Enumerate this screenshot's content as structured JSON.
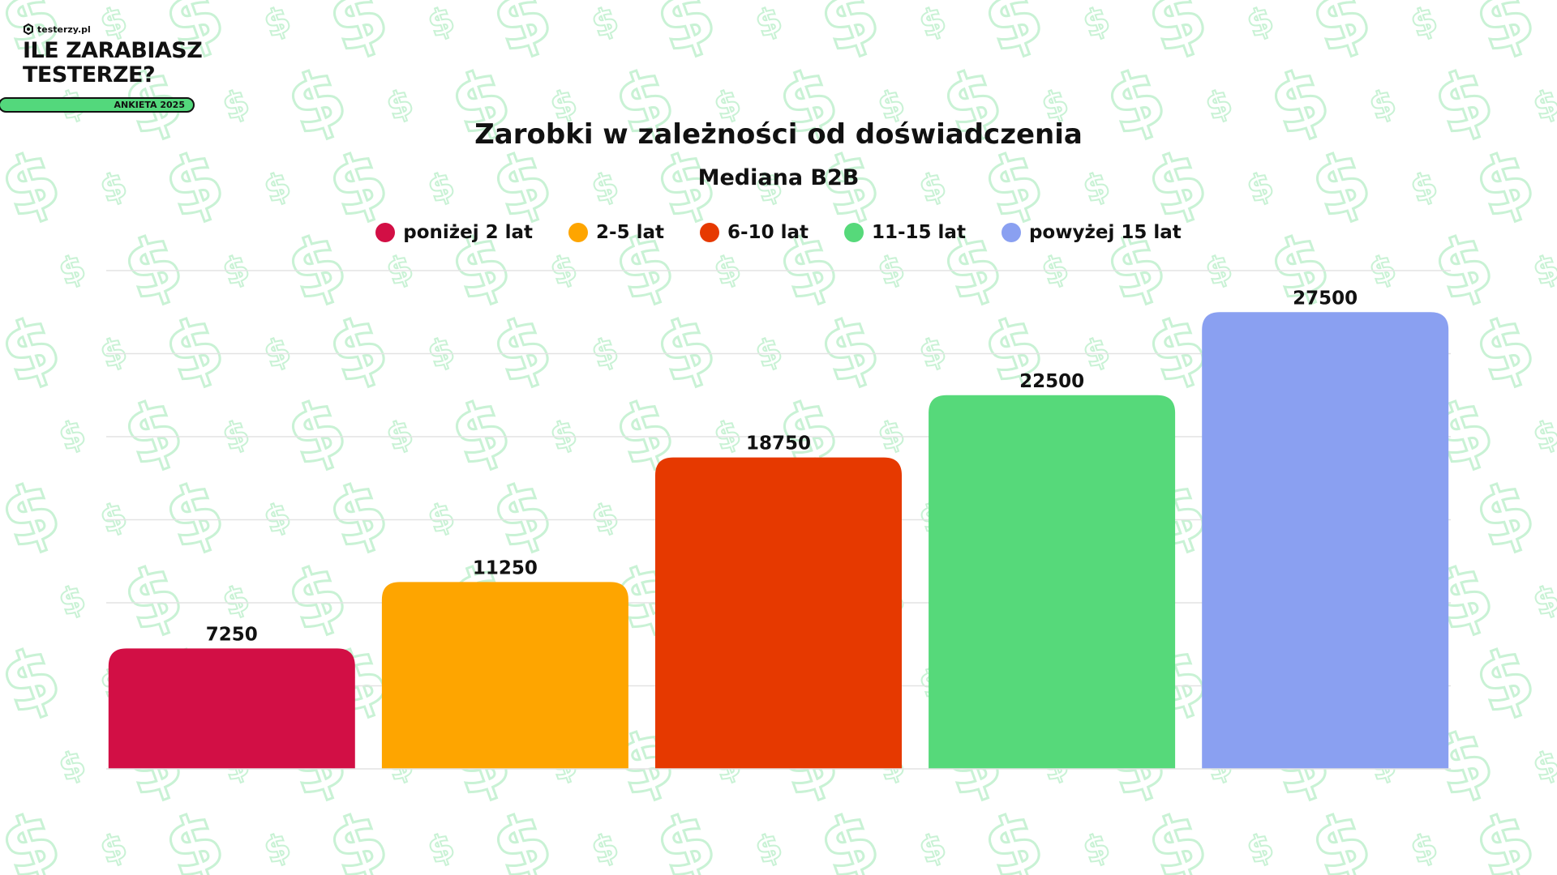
{
  "brand": {
    "logo_text": "testerzy.pl",
    "title": "ILE ZARABIASZ\nTESTERZE?",
    "badge": "ANKIETA 2025"
  },
  "colors": {
    "pattern": "#c9f2d5",
    "grid": "#e3e3e3",
    "badge": "#53d87c"
  },
  "chart_data": {
    "type": "bar",
    "title": "Zarobki w zależności od doświadczenia",
    "subtitle": "Mediana B2B",
    "xlabel": "",
    "ylabel": "",
    "ylim": [
      0,
      30000
    ],
    "grid": true,
    "legend_position": "top-center",
    "categories": [
      "poniżej 2 lat",
      "2-5 lat",
      "6-10 lat",
      "11-15 lat",
      "powyżej 15 lat"
    ],
    "values": [
      7250,
      11250,
      18750,
      22500,
      27500
    ],
    "value_labels": [
      "7250",
      "11250",
      "18750",
      "22500",
      "27500"
    ],
    "colors": [
      "#d20f45",
      "#fea500",
      "#e63900",
      "#56d97a",
      "#8aa0f1"
    ]
  }
}
